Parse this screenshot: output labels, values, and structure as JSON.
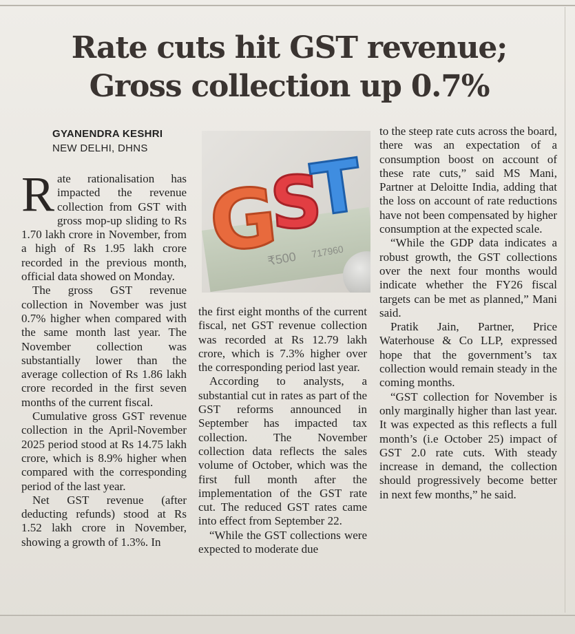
{
  "article": {
    "headline_line1": "Rate cuts hit GST revenue;",
    "headline_line2": "Gross collection up 0.7%",
    "author": "GYANENDRA KESHRI",
    "dateline": "NEW DELHI, DHNS",
    "photo": {
      "letters": [
        "G",
        "S",
        "T"
      ],
      "note_text": "₹500",
      "serial": "717960"
    },
    "col1": {
      "dropcap": "R",
      "p1": "ate rationalisation has impacted the revenue collection from GST with gross mop-up sliding to Rs 1.70 lakh crore in November, from a high of Rs 1.95 lakh crore recorded in the previous month, official data showed on Monday.",
      "p2": "The gross GST revenue collection in November was just 0.7% higher when compared with the same month last year. The November collection was substantially lower than the average collection of Rs 1.86 lakh crore recorded in the first seven months of the current fiscal.",
      "p3": "Cumulative gross GST revenue collection in the April-November 2025 period stood at Rs 14.75 lakh crore, which is 8.9% higher when compared with the corresponding period of the last year.",
      "p4": "Net GST revenue (after deducting refunds) stood at Rs 1.52 lakh crore in November, showing a growth of 1.3%. In"
    },
    "col2": {
      "p1": "the first eight months of the current fiscal, net GST revenue collection was recorded at Rs 12.79 lakh crore, which is 7.3% higher over the corresponding period last year.",
      "p2": "According to analysts, a substantial cut in rates as part of the GST reforms announced in September has impacted tax collection. The November collection data reflects the sales volume of October, which was the first full month after the implementation of the GST rate cut. The reduced GST rates came into effect from September 22.",
      "p3": "“While the GST collections were expected to moderate due"
    },
    "col3": {
      "p1": "to the steep rate cuts across the board, there was an expectation of a consumption boost on account of these rate cuts,” said MS Mani, Partner at Deloitte India, adding that the loss on account of rate reductions have not been compensated by higher consumption at the expected scale.",
      "p2": "“While the GDP data indicates a robust growth, the GST collections over the next four months would indicate whether the FY26 fiscal targets can be met as planned,” Mani said.",
      "p3": "Pratik Jain, Partner, Price Waterhouse & Co LLP, expressed hope that the government’s tax collection would remain steady in the coming months.",
      "p4": "“GST collection for November is only marginally higher than last year. It was expected as this reflects a full month’s (i.e October 25) impact of GST 2.0 rate cuts. With steady increase in demand, the collection should progressively become better in next few months,” he said."
    }
  }
}
